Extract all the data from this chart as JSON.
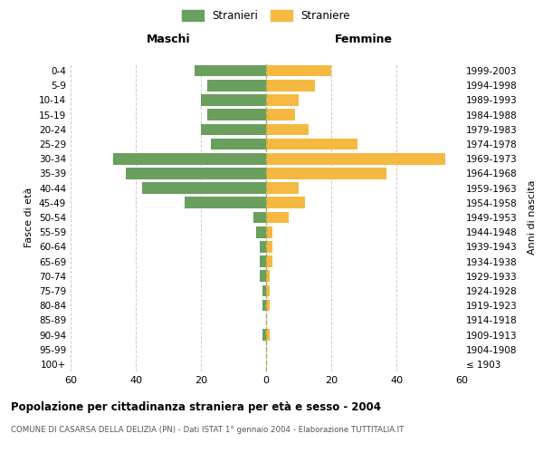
{
  "age_groups": [
    "100+",
    "95-99",
    "90-94",
    "85-89",
    "80-84",
    "75-79",
    "70-74",
    "65-69",
    "60-64",
    "55-59",
    "50-54",
    "45-49",
    "40-44",
    "35-39",
    "30-34",
    "25-29",
    "20-24",
    "15-19",
    "10-14",
    "5-9",
    "0-4"
  ],
  "birth_years": [
    "≤ 1903",
    "1904-1908",
    "1909-1913",
    "1914-1918",
    "1919-1923",
    "1924-1928",
    "1929-1933",
    "1934-1938",
    "1939-1943",
    "1944-1948",
    "1949-1953",
    "1954-1958",
    "1959-1963",
    "1964-1968",
    "1969-1973",
    "1974-1978",
    "1979-1983",
    "1984-1988",
    "1989-1993",
    "1994-1998",
    "1999-2003"
  ],
  "maschi": [
    0,
    0,
    1,
    0,
    1,
    1,
    2,
    2,
    2,
    3,
    4,
    25,
    38,
    43,
    47,
    17,
    20,
    18,
    20,
    18,
    22
  ],
  "femmine": [
    0,
    0,
    1,
    0,
    1,
    1,
    1,
    2,
    2,
    2,
    7,
    12,
    10,
    37,
    55,
    28,
    13,
    9,
    10,
    15,
    20
  ],
  "male_color": "#6a9f5e",
  "female_color": "#f5b942",
  "title": "Popolazione per cittadinanza straniera per età e sesso - 2004",
  "subtitle": "COMUNE DI CASARSA DELLA DELIZIA (PN) - Dati ISTAT 1° gennaio 2004 - Elaborazione TUTTITALIA.IT",
  "ylabel_left": "Fasce di età",
  "ylabel_right": "Anni di nascita",
  "legend_male": "Stranieri",
  "legend_female": "Straniere",
  "xlim": 60,
  "background_color": "#ffffff",
  "grid_color": "#cccccc"
}
